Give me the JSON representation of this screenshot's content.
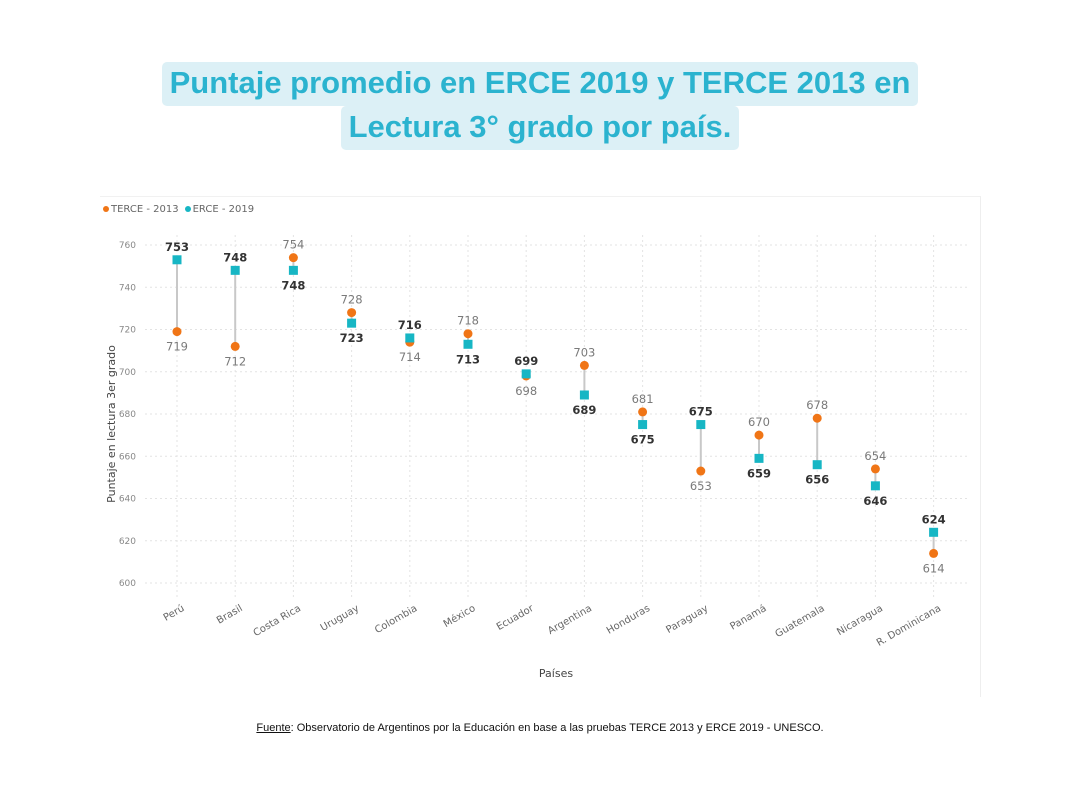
{
  "title": {
    "line1": "Puntaje promedio en ERCE 2019 y TERCE 2013 en",
    "line2": "Lectura 3° grado por país."
  },
  "source": {
    "label": "Fuente",
    "text": ": Observatorio de Argentinos por la Educación en base a las pruebas TERCE 2013 y ERCE 2019 - UNESCO."
  },
  "colors": {
    "terce": "#f07516",
    "erce": "#17b6c4",
    "connector": "#c8c8c8",
    "grid": "#e3e3e3",
    "title_bg": "#dcf0f6",
    "title_text": "#2bb3cf"
  },
  "chart_data": {
    "type": "dumbbell",
    "title": "Puntaje promedio en ERCE 2019 y TERCE 2013 en Lectura 3° grado por país.",
    "xlabel": "Países",
    "ylabel": "Puntaje en lectura 3er grado",
    "ylim": [
      600,
      760
    ],
    "yticks": [
      600,
      620,
      640,
      660,
      680,
      700,
      720,
      740,
      760
    ],
    "grid": true,
    "legend_position": "top-left",
    "categories": [
      "Perú",
      "Brasil",
      "Costa Rica",
      "Uruguay",
      "Colombia",
      "México",
      "Ecuador",
      "Argentina",
      "Honduras",
      "Paraguay",
      "Panamá",
      "Guatemala",
      "Nicaragua",
      "R. Dominicana"
    ],
    "series": [
      {
        "name": "TERCE - 2013",
        "marker": "circle",
        "values": [
          719,
          712,
          754,
          728,
          714,
          718,
          698,
          703,
          681,
          653,
          670,
          678,
          654,
          614
        ]
      },
      {
        "name": "ERCE - 2019",
        "marker": "square",
        "values": [
          753,
          748,
          748,
          723,
          716,
          713,
          699,
          689,
          675,
          675,
          659,
          656,
          646,
          624
        ]
      }
    ]
  }
}
